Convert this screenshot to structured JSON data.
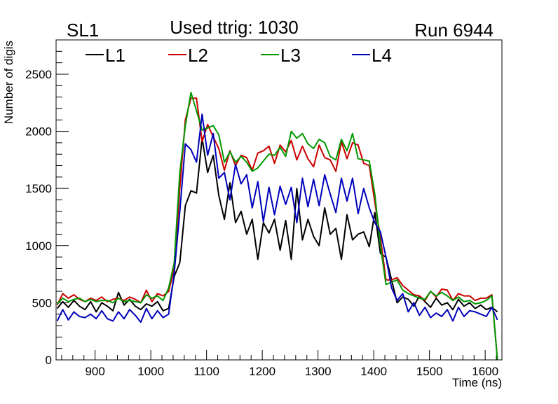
{
  "header": {
    "left_label": "SL1",
    "center_label": "Used ttrig: 1030",
    "right_label": "Run 6944"
  },
  "chart_data": {
    "type": "line",
    "xlabel": "Time (ns)",
    "ylabel": "Number of digis",
    "xlim": [
      830,
      1630
    ],
    "ylim": [
      0,
      2800
    ],
    "x_ticks": [
      900,
      1000,
      1100,
      1200,
      1300,
      1400,
      1500,
      1600
    ],
    "y_ticks": [
      0,
      500,
      1000,
      1500,
      2000,
      2500
    ],
    "grid": false,
    "legend_position": "top-left",
    "x": [
      832,
      842,
      852,
      862,
      872,
      882,
      892,
      902,
      912,
      922,
      932,
      942,
      952,
      962,
      972,
      982,
      992,
      1002,
      1012,
      1022,
      1032,
      1042,
      1052,
      1062,
      1072,
      1082,
      1092,
      1102,
      1112,
      1122,
      1132,
      1142,
      1152,
      1162,
      1172,
      1182,
      1192,
      1202,
      1212,
      1222,
      1232,
      1242,
      1252,
      1262,
      1272,
      1282,
      1292,
      1302,
      1312,
      1322,
      1332,
      1342,
      1352,
      1362,
      1372,
      1382,
      1392,
      1402,
      1412,
      1422,
      1432,
      1442,
      1452,
      1462,
      1472,
      1482,
      1492,
      1502,
      1512,
      1522,
      1532,
      1542,
      1552,
      1562,
      1572,
      1582,
      1592,
      1602,
      1612,
      1622
    ],
    "series": [
      {
        "name": "L1",
        "color": "#000000",
        "values": [
          450,
          510,
          460,
          520,
          470,
          440,
          510,
          420,
          500,
          470,
          430,
          590,
          480,
          530,
          470,
          440,
          490,
          470,
          510,
          430,
          450,
          730,
          850,
          1350,
          1480,
          1460,
          1940,
          1640,
          1790,
          1440,
          1230,
          1550,
          1200,
          1300,
          1100,
          1230,
          880,
          1200,
          1110,
          1230,
          960,
          1220,
          880,
          1500,
          1050,
          1230,
          1080,
          1000,
          1330,
          1100,
          1150,
          880,
          1270,
          1050,
          1100,
          1120,
          990,
          1290,
          930,
          900,
          700,
          500,
          550,
          530,
          470,
          560,
          510,
          460,
          540,
          480,
          500,
          440,
          530,
          470,
          500,
          450,
          480,
          440,
          460,
          420
        ]
      },
      {
        "name": "L2",
        "color": "#cc0000",
        "values": [
          480,
          580,
          540,
          570,
          530,
          510,
          540,
          520,
          550,
          510,
          530,
          540,
          520,
          550,
          530,
          500,
          610,
          510,
          580,
          560,
          600,
          800,
          1500,
          2100,
          2290,
          2290,
          1910,
          2060,
          1950,
          1850,
          1660,
          1830,
          1700,
          1790,
          1770,
          1660,
          1810,
          1830,
          1870,
          1720,
          1880,
          1820,
          1920,
          1750,
          1870,
          1760,
          1690,
          1880,
          1770,
          1750,
          1650,
          1910,
          1760,
          1900,
          1880,
          1720,
          1700,
          1380,
          1070,
          700,
          700,
          720,
          650,
          610,
          570,
          560,
          520,
          600,
          550,
          620,
          610,
          520,
          580,
          560,
          560,
          520,
          540,
          540,
          570,
          0
        ]
      },
      {
        "name": "L3",
        "color": "#009900",
        "values": [
          490,
          540,
          510,
          530,
          540,
          510,
          530,
          510,
          520,
          520,
          500,
          540,
          510,
          520,
          510,
          500,
          570,
          540,
          560,
          520,
          630,
          850,
          1640,
          2050,
          2340,
          2180,
          2010,
          2030,
          2050,
          1970,
          1730,
          1820,
          1730,
          1780,
          1730,
          1650,
          1680,
          1740,
          1800,
          1790,
          1860,
          1780,
          2000,
          1940,
          1980,
          1890,
          1850,
          1930,
          1900,
          1780,
          1750,
          1930,
          1830,
          1980,
          1760,
          1750,
          1740,
          1450,
          1000,
          660,
          680,
          700,
          610,
          580,
          560,
          540,
          530,
          600,
          560,
          590,
          560,
          520,
          550,
          510,
          520,
          490,
          500,
          520,
          560,
          0
        ]
      },
      {
        "name": "L4",
        "color": "#0000bb",
        "values": [
          340,
          440,
          350,
          420,
          380,
          370,
          400,
          360,
          430,
          360,
          340,
          420,
          360,
          440,
          390,
          330,
          450,
          360,
          430,
          370,
          400,
          760,
          1300,
          1890,
          1840,
          1730,
          2150,
          1790,
          1980,
          1590,
          1640,
          1400,
          1710,
          1540,
          1620,
          1330,
          1560,
          1210,
          1510,
          1270,
          1520,
          1360,
          1510,
          1200,
          1590,
          1340,
          1580,
          1350,
          1620,
          1450,
          1290,
          1590,
          1390,
          1590,
          1280,
          1500,
          1330,
          1200,
          1120,
          900,
          630,
          520,
          580,
          420,
          500,
          390,
          460,
          370,
          410,
          380,
          440,
          340,
          460,
          380,
          430,
          420,
          400,
          380,
          460,
          350
        ]
      }
    ]
  }
}
